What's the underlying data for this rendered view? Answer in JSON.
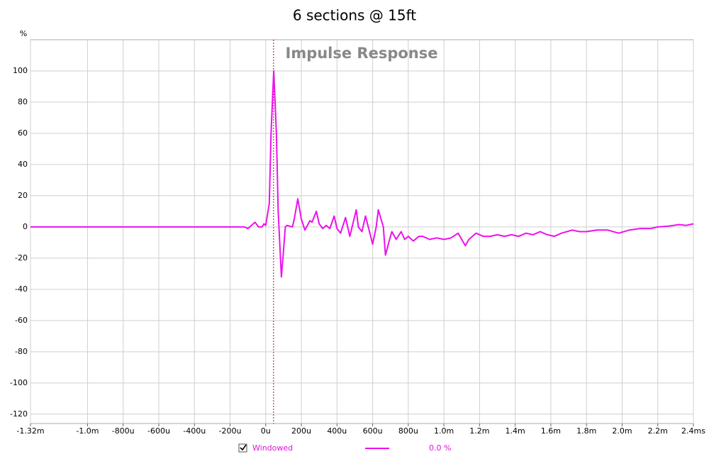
{
  "chart_data": {
    "type": "line",
    "title": "6 sections @ 15ft",
    "plot_title": "Impulse Response",
    "y_label": "%",
    "xlim": [
      -1.32,
      2.4
    ],
    "ylim": [
      -126,
      120
    ],
    "xticks": [
      {
        "value": -1.32,
        "label": "-1.32m"
      },
      {
        "value": -1.0,
        "label": "-1.0m"
      },
      {
        "value": -0.8,
        "label": "-800u"
      },
      {
        "value": -0.6,
        "label": "-600u"
      },
      {
        "value": -0.4,
        "label": "-400u"
      },
      {
        "value": -0.2,
        "label": "-200u"
      },
      {
        "value": 0,
        "label": "0u"
      },
      {
        "value": 0.2,
        "label": "200u"
      },
      {
        "value": 0.4,
        "label": "400u"
      },
      {
        "value": 0.6,
        "label": "600u"
      },
      {
        "value": 0.8,
        "label": "800u"
      },
      {
        "value": 1.0,
        "label": "1.0m"
      },
      {
        "value": 1.2,
        "label": "1.2m"
      },
      {
        "value": 1.4,
        "label": "1.4m"
      },
      {
        "value": 1.6,
        "label": "1.6m"
      },
      {
        "value": 1.8,
        "label": "1.8m"
      },
      {
        "value": 2.0,
        "label": "2.0m"
      },
      {
        "value": 2.2,
        "label": "2.2m"
      },
      {
        "value": 2.4,
        "label": "2.4ms"
      }
    ],
    "yticks": [
      -120,
      -100,
      -80,
      -60,
      -40,
      -20,
      0,
      20,
      40,
      60,
      80,
      100
    ],
    "grid": true,
    "marker_x": 0.044,
    "marker_color": "#a01010",
    "x": [
      -1.32,
      -0.5,
      -0.12,
      -0.1,
      -0.08,
      -0.06,
      -0.04,
      -0.02,
      -0.01,
      0.0,
      0.02,
      0.03,
      0.045,
      0.06,
      0.07,
      0.088,
      0.1,
      0.11,
      0.12,
      0.15,
      0.16,
      0.18,
      0.2,
      0.22,
      0.248,
      0.26,
      0.284,
      0.3,
      0.32,
      0.34,
      0.36,
      0.384,
      0.4,
      0.42,
      0.448,
      0.472,
      0.508,
      0.52,
      0.54,
      0.56,
      0.6,
      0.62,
      0.632,
      0.66,
      0.672,
      0.7,
      0.708,
      0.732,
      0.76,
      0.78,
      0.8,
      0.828,
      0.86,
      0.88,
      0.92,
      0.96,
      1.0,
      1.04,
      1.08,
      1.12,
      1.14,
      1.18,
      1.22,
      1.26,
      1.3,
      1.34,
      1.38,
      1.42,
      1.46,
      1.5,
      1.54,
      1.58,
      1.62,
      1.66,
      1.72,
      1.76,
      1.8,
      1.86,
      1.92,
      1.98,
      2.04,
      2.1,
      2.16,
      2.2,
      2.26,
      2.32,
      2.36,
      2.4
    ],
    "series": [
      {
        "name": "Windowed",
        "readout": "0.0 %",
        "color": "#ee10ee",
        "values": [
          0,
          0,
          0,
          -1,
          1,
          3,
          0,
          0,
          2,
          1,
          15,
          60,
          100,
          60,
          10,
          -32,
          -15,
          0,
          1,
          0,
          5,
          18,
          5,
          -2,
          4,
          3,
          10,
          2,
          -1,
          1,
          -1,
          7,
          -1,
          -4,
          6,
          -6,
          11,
          0,
          -3,
          7,
          -11,
          0,
          11,
          0,
          -18,
          -6,
          -3,
          -8,
          -3,
          -8,
          -6,
          -9,
          -6,
          -6,
          -8,
          -7,
          -8,
          -7,
          -4,
          -12,
          -8,
          -4,
          -6,
          -6,
          -5,
          -6,
          -5,
          -6,
          -4,
          -5,
          -3,
          -5,
          -6,
          -4,
          -2,
          -3,
          -3,
          -2,
          -2,
          -4,
          -2,
          -1,
          -1,
          0,
          0.5,
          1.5,
          1,
          2
        ]
      }
    ]
  }
}
